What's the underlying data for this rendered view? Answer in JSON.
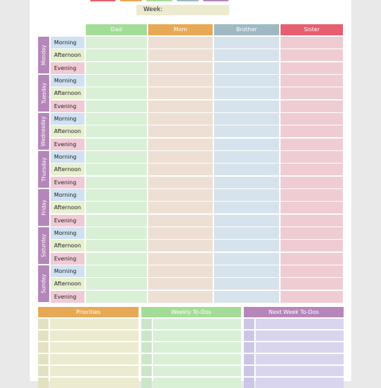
{
  "week_label": "Week:",
  "people": [
    {
      "name": "Dad",
      "color": "#a3dc97",
      "cell": "#d9f0d6"
    },
    {
      "name": "Mom",
      "color": "#e7a954",
      "cell": "#eedfd5"
    },
    {
      "name": "Brother",
      "color": "#9fb9c3",
      "cell": "#d7e3ec"
    },
    {
      "name": "Sister",
      "color": "#e65e6f",
      "cell": "#efccd1"
    }
  ],
  "days": [
    "Monday",
    "Tuesday",
    "Wednesday",
    "Thursday",
    "Friday",
    "Saturday",
    "Sunday"
  ],
  "day_color": "#b586ba",
  "periods": [
    {
      "label": "Morning",
      "color": "#d0e2f1"
    },
    {
      "label": "Afternoon",
      "color": "#e6f0cf"
    },
    {
      "label": "Evening",
      "color": "#f0cbd5"
    }
  ],
  "sections": [
    {
      "title": "Priorities",
      "header_color": "#e7a954",
      "row_color": "#ecebd0",
      "check_color": "#e2e1c2"
    },
    {
      "title": "Weekly To-Dos",
      "header_color": "#a3dc97",
      "row_color": "#d9f0d6",
      "check_color": "#cbe6c7"
    },
    {
      "title": "Next Week To-Dos",
      "header_color": "#b586ba",
      "row_color": "#d9d5ee",
      "check_color": "#cbc5e6"
    }
  ],
  "title_colors": [
    "#e65e6f",
    "#e7a954",
    "#a3dc97",
    "#9fb9c3",
    "#b586ba"
  ]
}
